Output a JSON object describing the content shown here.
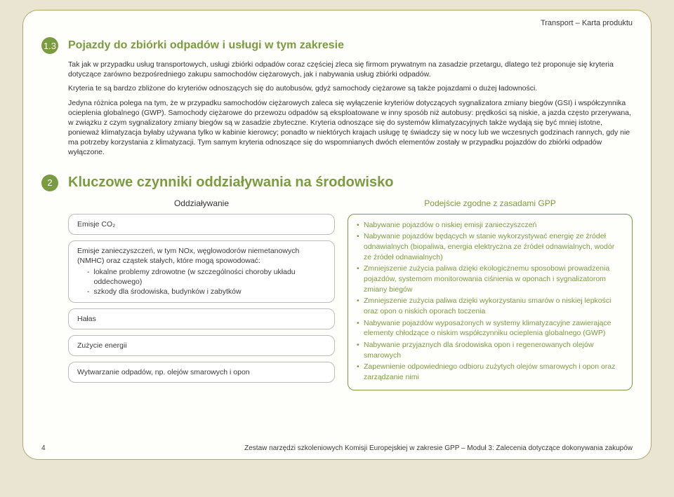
{
  "doc_label": "Transport – Karta produktu",
  "section1": {
    "num": "1.3",
    "title": "Pojazdy do zbiórki odpadów i usługi w tym zakresie",
    "p1": "Tak jak w przypadku usług transportowych, usługi zbiórki odpadów coraz częściej zleca się firmom prywatnym na zasadzie przetargu, dlatego też proponuje się kryteria dotyczące zarówno bezpośredniego zakupu samochodów ciężarowych, jak i nabywania usług zbiórki odpadów.",
    "p2": "Kryteria te są bardzo zbliżone do kryteriów odnoszących się do autobusów, gdyż samochody ciężarowe są także pojazdami o dużej ładowności.",
    "p3": "Jedyna różnica polega na tym, że w przypadku samochodów ciężarowych zaleca się wyłączenie kryteriów dotyczących sygnalizatora zmiany biegów (GSI) i współczynnika ocieplenia globalnego (GWP). Samochody ciężarowe do przewozu odpadów są eksploatowane w inny sposób niż autobusy: prędkości są niskie, a jazda często przerywana, w związku z czym sygnalizatory zmiany biegów są w zasadzie zbyteczne. Kryteria odnoszące się do systemów klimatyzacyjnych także wydają się być mniej istotne, ponieważ klimatyzacja byłaby używana tylko w kabinie kierowcy; ponadto w niektórych krajach usługę tę świadczy się w nocy lub we wczesnych godzinach rannych, gdy nie ma potrzeby korzystania z klimatyzacji. Tym samym kryteria odnoszące się do wspomnianych dwóch elementów zostały w przypadku pojazdów do zbiórki odpadów wyłączone."
  },
  "section2": {
    "num": "2",
    "title": "Kluczowe czynniki oddziaływania na środowisko",
    "left_head": "Oddziaływanie",
    "right_head": "Podejście zgodne z zasadami GPP",
    "pills": {
      "p1": "Emisje CO₂",
      "p2_intro": "Emisje zanieczyszczeń, w tym NOx, węglowodorów niemetanowych (NMHC) oraz cząstek stałych, które mogą spowodować:",
      "p2_b1": "lokalne problemy zdrowotne (w szczególności choroby układu oddechowego)",
      "p2_b2": "szkody dla środowiska, budynków i zabytków",
      "p3": "Hałas",
      "p4": "Zużycie energii",
      "p5": "Wytwarzanie odpadów, np. olejów smarowych i opon"
    },
    "gpp": {
      "i1": "Nabywanie pojazdów o niskiej emisji zanieczyszczeń",
      "i2": "Nabywanie pojazdów będących w stanie wykorzystywać energię ze źródeł odnawialnych (biopaliwa, energia elektryczna ze źródeł odnawialnych, wodór ze źródeł odnawialnych)",
      "i3": "Zmniejszenie zużycia paliwa dzięki ekologicznemu sposobowi prowadzenia pojazdów, systemom monitorowania ciśnienia w oponach i sygnalizatorom zmiany biegów",
      "i4": "Zmniejszenie zużycia paliwa dzięki wykorzystaniu smarów o niskiej lepkości oraz opon o niskich oporach toczenia",
      "i5": "Nabywanie pojazdów wyposażonych w systemy klimatyzacyjne zawierające elementy chłodzące o niskim współczynniku ocieplenia globalnego (GWP)",
      "i6": "Nabywanie przyjaznych dla środowiska opon i regenerowanych olejów smarowych",
      "i7": "Zapewnienie odpowiedniego odbioru zużytych olejów smarowych i opon oraz zarządzanie nimi"
    }
  },
  "footer": {
    "page": "4",
    "text": "Zestaw narzędzi szkoleniowych Komisji Europejskiej w zakresie GPP   –  Moduł 3: Zalecenia dotyczące dokonywania zakupów"
  }
}
